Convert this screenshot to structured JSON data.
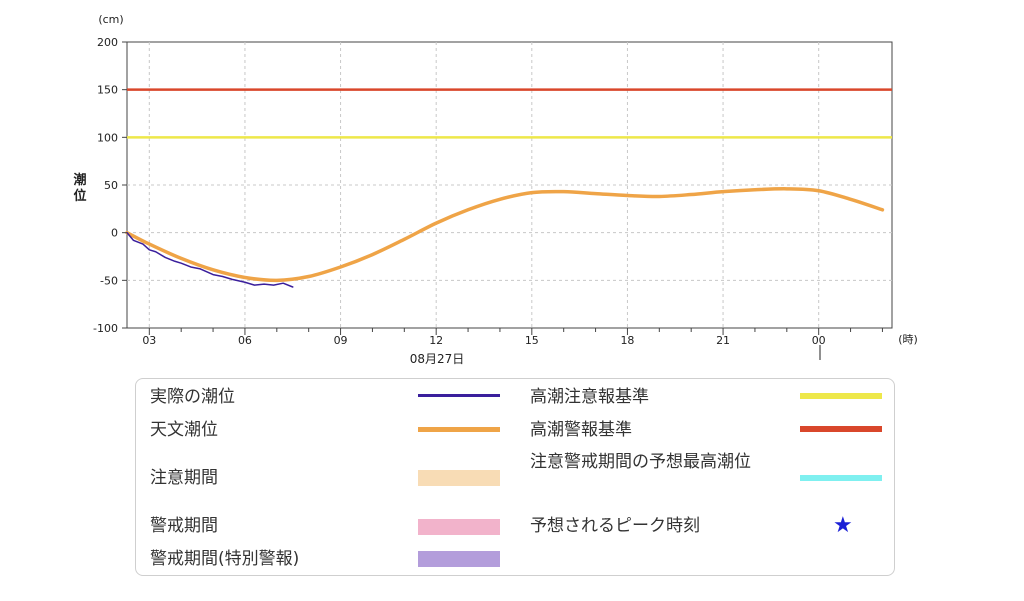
{
  "chart_data": {
    "type": "line",
    "ylabel": "潮位",
    "yunit": "(cm)",
    "xunit": "(時)",
    "date_label": "08月27日",
    "ylim": [
      -100,
      200
    ],
    "yticks": [
      -100,
      -50,
      0,
      50,
      100,
      150,
      200
    ],
    "xticks": [
      "03",
      "06",
      "09",
      "12",
      "15",
      "18",
      "21",
      "00"
    ],
    "grid": true,
    "thresholds": [
      {
        "name": "高潮警報基準",
        "value": 150,
        "color": "#d9472b"
      },
      {
        "name": "高潮注意報基準",
        "value": 100,
        "color": "#eee84a"
      }
    ],
    "series": [
      {
        "name": "天文潮位",
        "color": "#efa447",
        "x": [
          2.3,
          3,
          4,
          5,
          6,
          7,
          8,
          9,
          10,
          11,
          12,
          13,
          14,
          15,
          16,
          17,
          18,
          19,
          20,
          21,
          22,
          23,
          24,
          25,
          26
        ],
        "y": [
          0,
          -12,
          -27,
          -39,
          -47,
          -50,
          -46,
          -36,
          -23,
          -7,
          10,
          24,
          35,
          42,
          43,
          41,
          39,
          38,
          40,
          43,
          45,
          46,
          44,
          35,
          24
        ]
      },
      {
        "name": "実際の潮位",
        "color": "#3a1f9c",
        "x": [
          2.3,
          2.5,
          2.8,
          3.0,
          3.2,
          3.5,
          3.8,
          4.0,
          4.3,
          4.6,
          5.0,
          5.3,
          5.6,
          6.0,
          6.3,
          6.6,
          6.9,
          7.2,
          7.5
        ],
        "y": [
          0,
          -8,
          -12,
          -18,
          -20,
          -26,
          -30,
          -32,
          -36,
          -38,
          -44,
          -46,
          -49,
          -52,
          -55,
          -54,
          -55,
          -53,
          -57
        ]
      }
    ]
  },
  "legend": {
    "actual": "実際の潮位",
    "astro": "天文潮位",
    "caution_period": "注意期間",
    "warning_period": "警戒期間",
    "special_period": "警戒期間(特別警報)",
    "caution_std": "高潮注意報基準",
    "warning_std": "高潮警報基準",
    "forecast_max": "注意警戒期間の予想最高潮位",
    "peak_time": "予想されるピーク時刻",
    "colors": {
      "actual": "#3a1f9c",
      "astro": "#efa447",
      "caution_period": "#f8dcb5",
      "warning_period": "#f2b3cb",
      "special_period": "#b39ddb",
      "caution_std": "#eee84a",
      "warning_std": "#d9472b",
      "forecast_max": "#7ff0f0",
      "peak_star": "#1a1fd6"
    },
    "peak_symbol": "★"
  }
}
